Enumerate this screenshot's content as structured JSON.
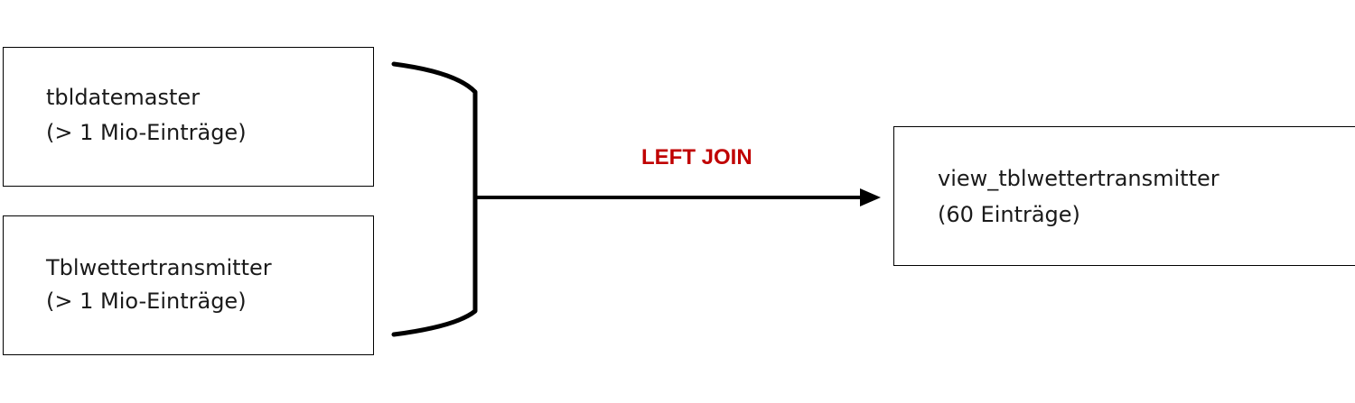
{
  "source_tables": [
    {
      "name": "tbldatemaster",
      "count": "(> 1 Mio-Einträge)"
    },
    {
      "name": "Tblwettertransmitter",
      "count": "(> 1 Mio-Einträge)"
    }
  ],
  "join": {
    "label": "LEFT JOIN",
    "label_color": "#c00000"
  },
  "result_view": {
    "name": "view_tblwettertransmitter",
    "count": "(60 Einträge)"
  },
  "colors": {
    "border": "#000000",
    "text": "#1a1a1a",
    "connector": "#000000"
  }
}
